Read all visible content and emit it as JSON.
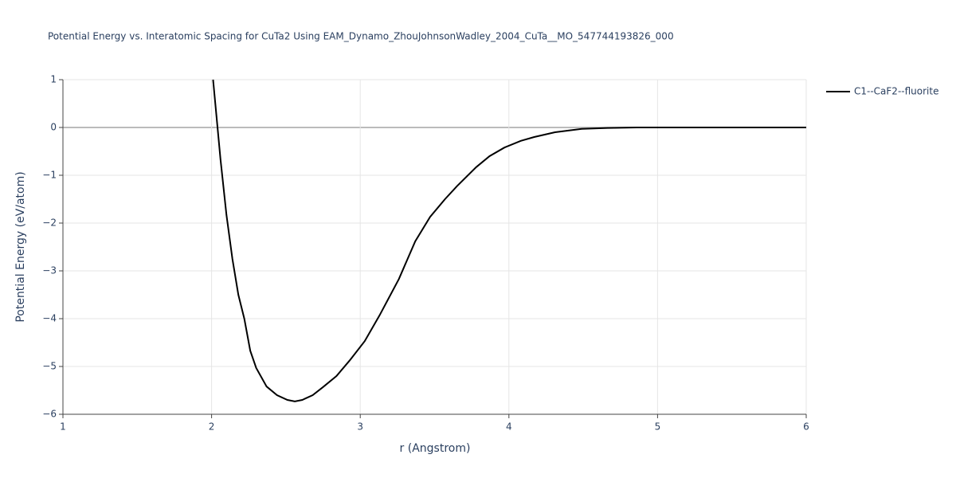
{
  "chart_data": {
    "type": "line",
    "title": "Potential Energy vs. Interatomic Spacing for CuTa2 Using EAM_Dynamo_ZhouJohnsonWadley_2004_CuTa__MO_547744193826_000",
    "xlabel": "r (Angstrom)",
    "ylabel": "Potential Energy (eV/atom)",
    "x": [
      2.01,
      2.06,
      2.1,
      2.14,
      2.18,
      2.22,
      2.26,
      2.3,
      2.37,
      2.44,
      2.51,
      2.56,
      2.61,
      2.68,
      2.75,
      2.84,
      2.93,
      3.03,
      3.13,
      3.26,
      3.37,
      3.47,
      3.57,
      3.65,
      3.78,
      3.87,
      3.97,
      4.08,
      4.17,
      4.31,
      4.49,
      4.67,
      4.86,
      5.0,
      5.5,
      6.0
    ],
    "series": [
      {
        "name": "C1--CaF2--fluorite",
        "color": "#000000",
        "values": [
          1,
          -0.67,
          -1.83,
          -2.75,
          -3.5,
          -4.0,
          -4.67,
          -5.03,
          -5.42,
          -5.6,
          -5.7,
          -5.73,
          -5.7,
          -5.6,
          -5.43,
          -5.2,
          -4.87,
          -4.47,
          -3.93,
          -3.17,
          -2.38,
          -1.87,
          -1.5,
          -1.23,
          -0.83,
          -0.6,
          -0.42,
          -0.28,
          -0.2,
          -0.1,
          -0.03,
          -0.01,
          0,
          0,
          0,
          0
        ]
      }
    ],
    "xlim": [
      1,
      6
    ],
    "xticks": [
      1,
      2,
      3,
      4,
      5,
      6
    ],
    "ylim": [
      -6,
      1
    ],
    "yticks": [
      {
        "value": -6,
        "label": "−6"
      },
      {
        "value": -5,
        "label": "−5"
      },
      {
        "value": -4,
        "label": "−4"
      },
      {
        "value": -3,
        "label": "−3"
      },
      {
        "value": -2,
        "label": "−2"
      },
      {
        "value": -1,
        "label": "−1"
      },
      0,
      1
    ],
    "grid": true,
    "legend": "right"
  }
}
